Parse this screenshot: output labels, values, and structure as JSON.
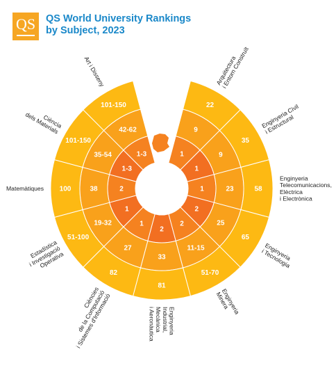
{
  "logo": {
    "text": "QS"
  },
  "title": {
    "line1": "QS World University Rankings",
    "line2": "by Subject, 2023"
  },
  "colors": {
    "ring_outer": "#fdb913",
    "ring_middle": "#f9a11b",
    "ring_inner": "#f58220",
    "ring_inner2": "#f26f21",
    "title": "#1a88c9",
    "labels": "#222222"
  },
  "chart_data": {
    "type": "radial",
    "rings": [
      "outer",
      "middle",
      "inner"
    ],
    "categories": [
      {
        "label": "Arquitectura i Entorn Construït",
        "label_lines": [
          "Arquitectura",
          "i Entorn Construït"
        ],
        "outer": "22",
        "middle": "9",
        "inner": "1"
      },
      {
        "label": "Enginyeria Civil i Estructural",
        "label_lines": [
          "Enginyeria Civil",
          "i Estructural"
        ],
        "outer": "35",
        "middle": "9",
        "inner": "1"
      },
      {
        "label": "Enginyeria Telecomunicacions, Elèctrica i Electrònica",
        "label_lines": [
          "Enginyeria",
          "Telecomunicacions,",
          "Elèctrica",
          "i Electrònica"
        ],
        "outer": "58",
        "middle": "23",
        "inner": "1"
      },
      {
        "label": "Enginyeria i Tecnologia",
        "label_lines": [
          "Enginyeria",
          "i Tecnologia"
        ],
        "outer": "65",
        "middle": "25",
        "inner": "2"
      },
      {
        "label": "Enginyeria Minera",
        "label_lines": [
          "Enginyeria",
          "Minera"
        ],
        "outer": "51-70",
        "middle": "11-15",
        "inner": "2"
      },
      {
        "label": "Enginyeria Industrial, Mecànica i Aeronàutica",
        "label_lines": [
          "Enginyeria",
          "Industrial,",
          "Mecànica",
          "i Aeronàutica"
        ],
        "outer": "81",
        "middle": "33",
        "inner": "2"
      },
      {
        "label": "Ciències de la Computació i Sistemes d'Informació",
        "label_lines": [
          "Ciències",
          "de la Computació",
          "i Sistemes d'Informació"
        ],
        "outer": "82",
        "middle": "27",
        "inner": "1"
      },
      {
        "label": "Estadística i Investigació Operativa",
        "label_lines": [
          "Estadística",
          "i Investigació",
          "Operativa"
        ],
        "outer": "51-100",
        "middle": "19-32",
        "inner": "1"
      },
      {
        "label": "Matemàtiques",
        "label_lines": [
          "Matemàtiques"
        ],
        "outer": "100",
        "middle": "38",
        "inner": "2"
      },
      {
        "label": "Ciència dels Materials",
        "label_lines": [
          "Ciència",
          "dels Materials"
        ],
        "outer": "101-150",
        "middle": "35-54",
        "inner": "1-3"
      },
      {
        "label": "Art i Disseny",
        "label_lines": [
          "Art i Disseny"
        ],
        "outer": "101-150",
        "middle": "42-62",
        "inner": "1-3"
      }
    ]
  }
}
